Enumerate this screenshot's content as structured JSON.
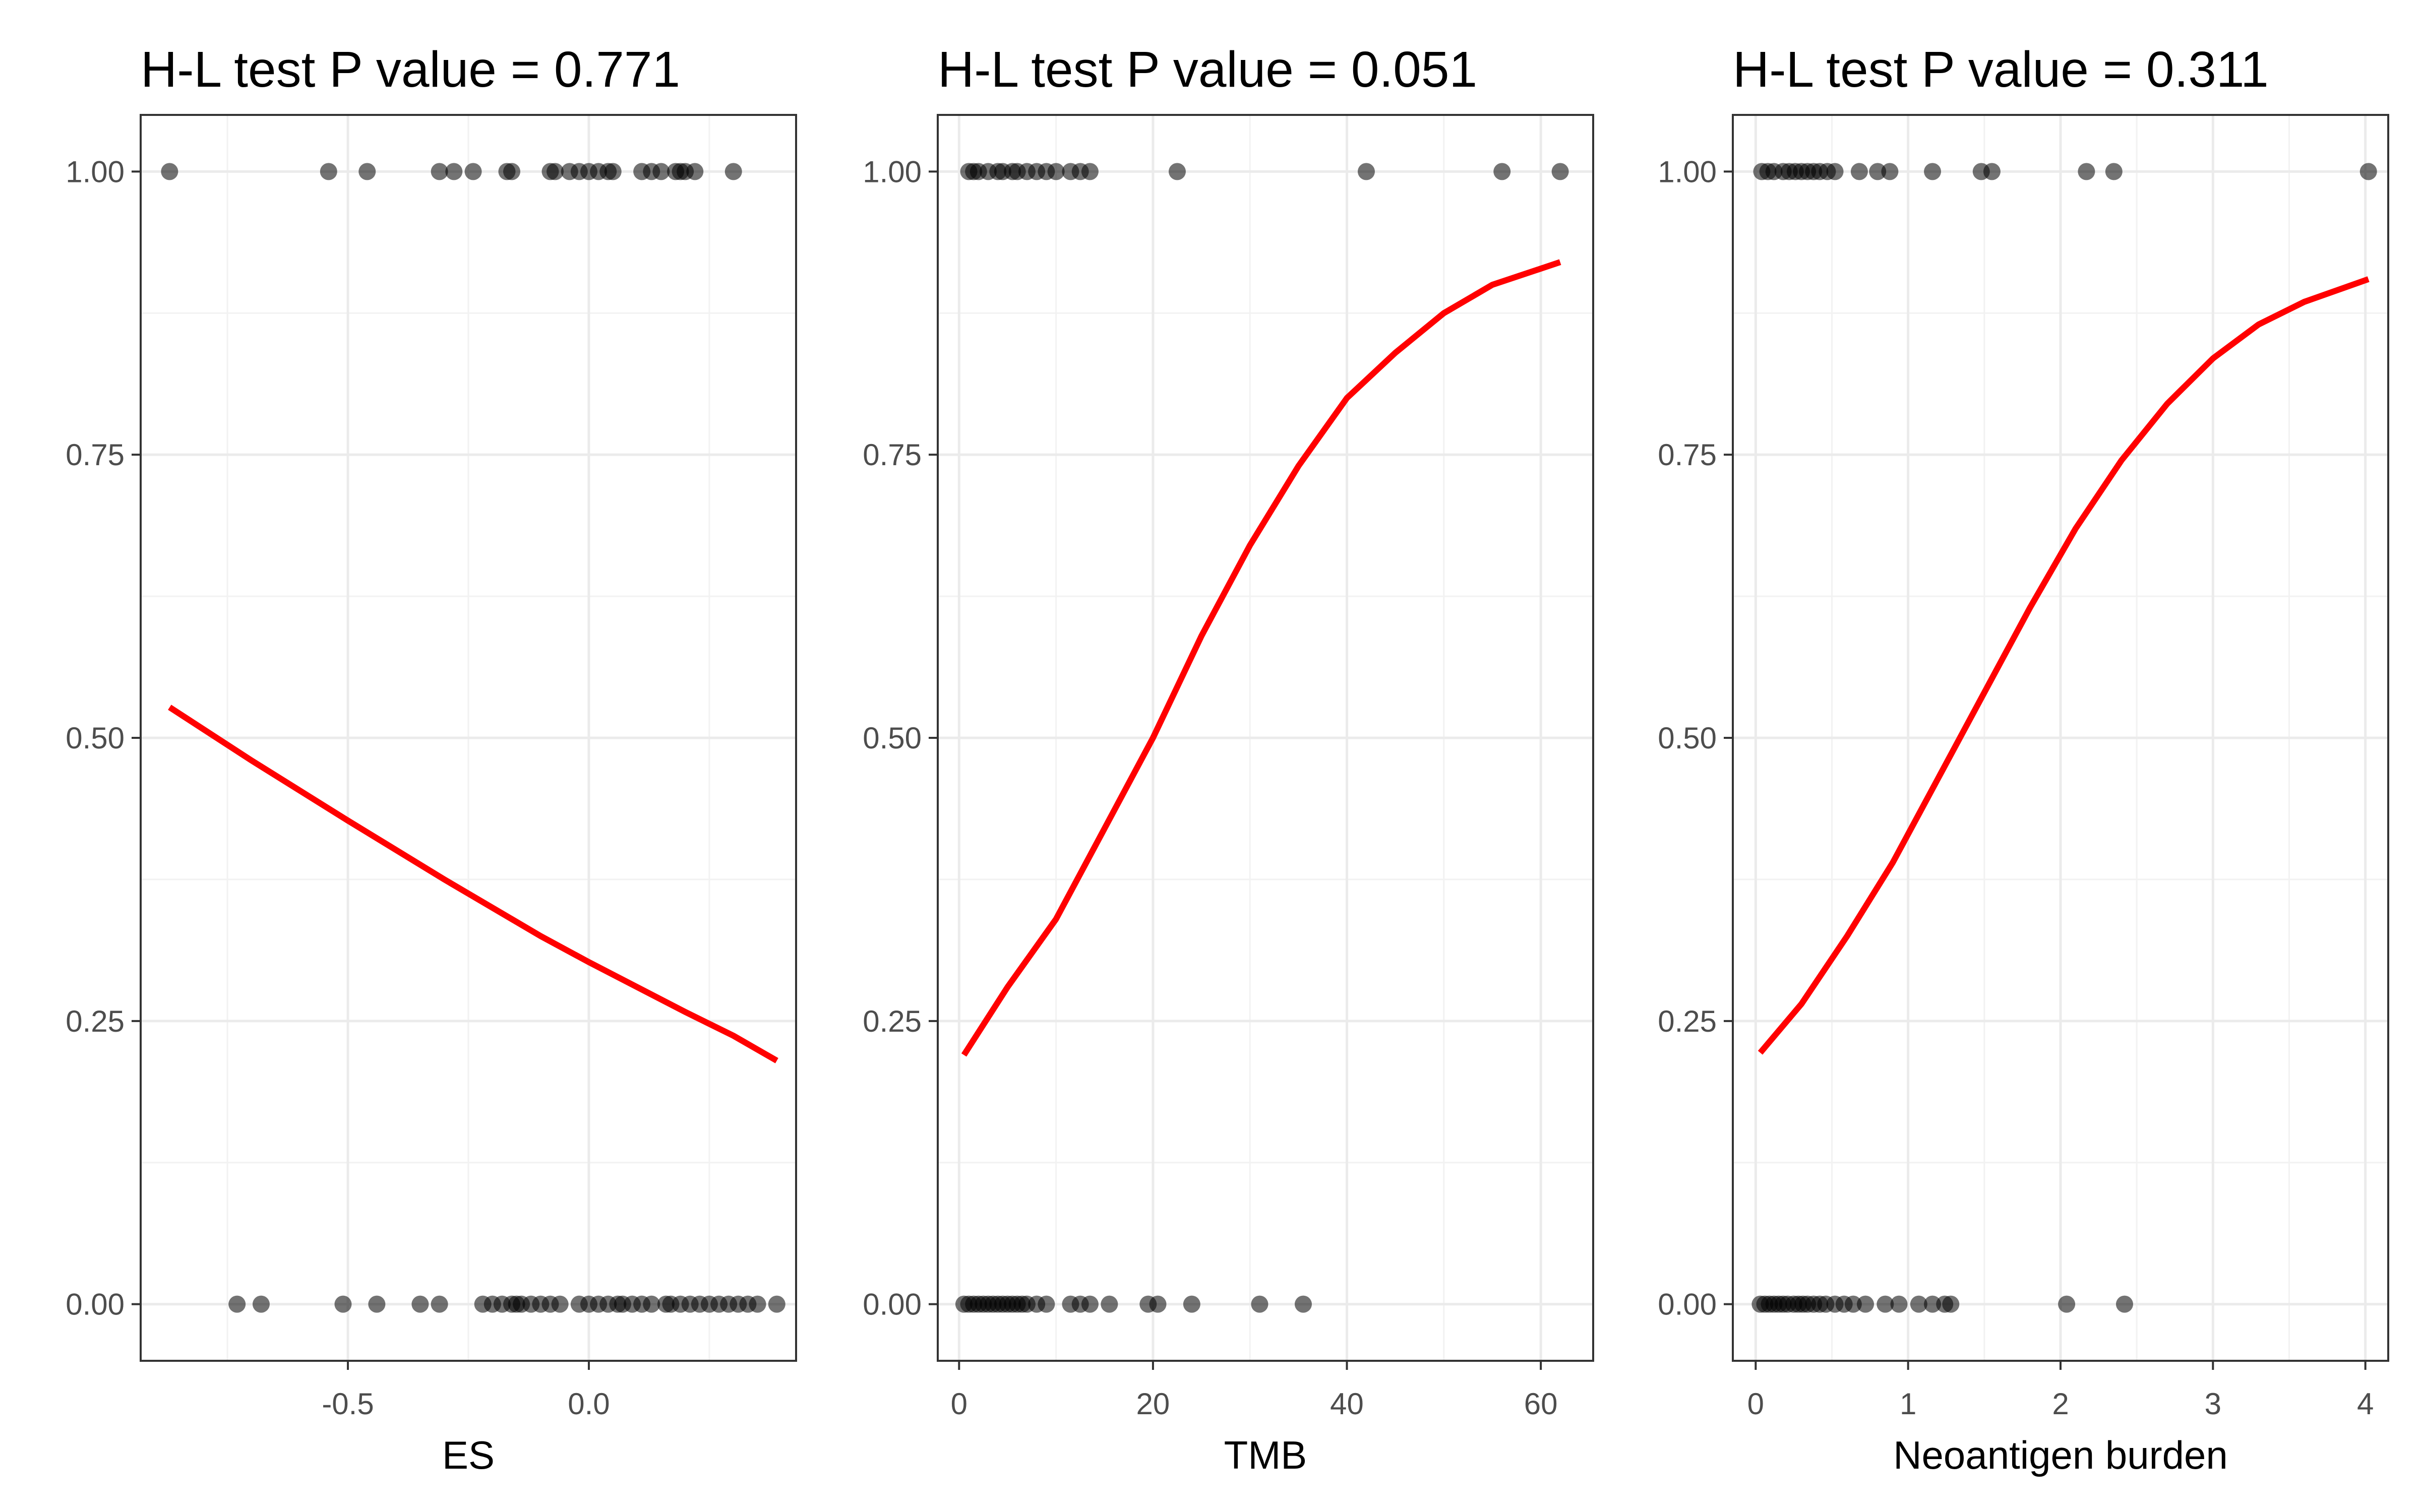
{
  "chart_data": [
    {
      "type": "scatter",
      "title": "H-L test P value = 0.771",
      "xlabel": "ES",
      "ylabel": "",
      "xlim": [
        -0.93,
        0.43
      ],
      "ylim": [
        -0.05,
        1.05
      ],
      "xticks": [
        -0.5,
        0.0
      ],
      "xtick_labels": [
        "-0.5",
        "0.0"
      ],
      "yticks": [
        0,
        0.25,
        0.5,
        0.75,
        1
      ],
      "ytick_labels": [
        "0.00",
        "0.25",
        "0.50",
        "0.75",
        "1.00"
      ],
      "grid": true,
      "point_color": "#000000",
      "line_color": "#ff0000",
      "series": [
        {
          "kind": "points",
          "points": [
            [
              -0.87,
              1
            ],
            [
              -0.54,
              1
            ],
            [
              -0.46,
              1
            ],
            [
              -0.31,
              1
            ],
            [
              -0.28,
              1
            ],
            [
              -0.24,
              1
            ],
            [
              -0.17,
              1
            ],
            [
              -0.16,
              1
            ],
            [
              -0.08,
              1
            ],
            [
              -0.07,
              1
            ],
            [
              -0.04,
              1
            ],
            [
              -0.02,
              1
            ],
            [
              0.0,
              1
            ],
            [
              0.02,
              1
            ],
            [
              0.04,
              1
            ],
            [
              0.05,
              1
            ],
            [
              0.11,
              1
            ],
            [
              0.13,
              1
            ],
            [
              0.15,
              1
            ],
            [
              0.18,
              1
            ],
            [
              0.19,
              1
            ],
            [
              0.2,
              1
            ],
            [
              0.22,
              1
            ],
            [
              0.3,
              1
            ],
            [
              -0.73,
              0
            ],
            [
              -0.68,
              0
            ],
            [
              -0.51,
              0
            ],
            [
              -0.44,
              0
            ],
            [
              -0.35,
              0
            ],
            [
              -0.31,
              0
            ],
            [
              -0.22,
              0
            ],
            [
              -0.2,
              0
            ],
            [
              -0.18,
              0
            ],
            [
              -0.16,
              0
            ],
            [
              -0.15,
              0
            ],
            [
              -0.14,
              0
            ],
            [
              -0.12,
              0
            ],
            [
              -0.1,
              0
            ],
            [
              -0.08,
              0
            ],
            [
              -0.06,
              0
            ],
            [
              -0.02,
              0
            ],
            [
              0.0,
              0
            ],
            [
              0.02,
              0
            ],
            [
              0.04,
              0
            ],
            [
              0.06,
              0
            ],
            [
              0.07,
              0
            ],
            [
              0.09,
              0
            ],
            [
              0.11,
              0
            ],
            [
              0.13,
              0
            ],
            [
              0.16,
              0
            ],
            [
              0.17,
              0
            ],
            [
              0.19,
              0
            ],
            [
              0.21,
              0
            ],
            [
              0.23,
              0
            ],
            [
              0.25,
              0
            ],
            [
              0.27,
              0
            ],
            [
              0.29,
              0
            ],
            [
              0.31,
              0
            ],
            [
              0.33,
              0
            ],
            [
              0.35,
              0
            ],
            [
              0.39,
              0
            ]
          ]
        },
        {
          "kind": "line",
          "points": [
            [
              -0.87,
              0.527
            ],
            [
              -0.7,
              0.48
            ],
            [
              -0.5,
              0.427
            ],
            [
              -0.3,
              0.375
            ],
            [
              -0.1,
              0.325
            ],
            [
              0.0,
              0.302
            ],
            [
              0.1,
              0.28
            ],
            [
              0.2,
              0.258
            ],
            [
              0.3,
              0.237
            ],
            [
              0.39,
              0.215
            ]
          ]
        }
      ]
    },
    {
      "type": "scatter",
      "title": "H-L test P value = 0.051",
      "xlabel": "TMB",
      "ylabel": "",
      "xlim": [
        -2.2,
        65.4
      ],
      "ylim": [
        -0.05,
        1.05
      ],
      "xticks": [
        0,
        20,
        40,
        60
      ],
      "xtick_labels": [
        "0",
        "20",
        "40",
        "60"
      ],
      "yticks": [
        0,
        0.25,
        0.5,
        0.75,
        1
      ],
      "ytick_labels": [
        "0.00",
        "0.25",
        "0.50",
        "0.75",
        "1.00"
      ],
      "grid": true,
      "point_color": "#000000",
      "line_color": "#ff0000",
      "series": [
        {
          "kind": "points",
          "points": [
            [
              1,
              1
            ],
            [
              1.5,
              1
            ],
            [
              2,
              1
            ],
            [
              3,
              1
            ],
            [
              4,
              1
            ],
            [
              4.5,
              1
            ],
            [
              5.5,
              1
            ],
            [
              6,
              1
            ],
            [
              7,
              1
            ],
            [
              8,
              1
            ],
            [
              9,
              1
            ],
            [
              10,
              1
            ],
            [
              11.5,
              1
            ],
            [
              12.5,
              1
            ],
            [
              13.5,
              1
            ],
            [
              22.5,
              1
            ],
            [
              42,
              1
            ],
            [
              56,
              1
            ],
            [
              62,
              1
            ],
            [
              0.5,
              0
            ],
            [
              1,
              0
            ],
            [
              1.5,
              0
            ],
            [
              2,
              0
            ],
            [
              2.5,
              0
            ],
            [
              3,
              0
            ],
            [
              3.5,
              0
            ],
            [
              4,
              0
            ],
            [
              4.5,
              0
            ],
            [
              5,
              0
            ],
            [
              5.5,
              0
            ],
            [
              6,
              0
            ],
            [
              6.5,
              0
            ],
            [
              7,
              0
            ],
            [
              8,
              0
            ],
            [
              9,
              0
            ],
            [
              11.5,
              0
            ],
            [
              12.5,
              0
            ],
            [
              13.5,
              0
            ],
            [
              15.5,
              0
            ],
            [
              19.5,
              0
            ],
            [
              20.5,
              0
            ],
            [
              24,
              0
            ],
            [
              31,
              0
            ],
            [
              35.5,
              0
            ]
          ]
        },
        {
          "kind": "line",
          "points": [
            [
              0.5,
              0.22
            ],
            [
              5,
              0.28
            ],
            [
              10,
              0.34
            ],
            [
              15,
              0.42
            ],
            [
              20,
              0.5
            ],
            [
              25,
              0.59
            ],
            [
              30,
              0.67
            ],
            [
              35,
              0.74
            ],
            [
              40,
              0.8
            ],
            [
              45,
              0.84
            ],
            [
              50,
              0.875
            ],
            [
              55,
              0.9
            ],
            [
              62,
              0.92
            ]
          ]
        }
      ]
    },
    {
      "type": "scatter",
      "title": "H-L test P value = 0.311",
      "xlabel": "Neoantigen burden",
      "ylabel": "",
      "xlim": [
        -0.15,
        4.15
      ],
      "ylim": [
        -0.05,
        1.05
      ],
      "xticks": [
        0,
        1,
        2,
        3,
        4
      ],
      "xtick_labels": [
        "0",
        "1",
        "2",
        "3",
        "4"
      ],
      "yticks": [
        0,
        0.25,
        0.5,
        0.75,
        1
      ],
      "ytick_labels": [
        "0.00",
        "0.25",
        "0.50",
        "0.75",
        "1.00"
      ],
      "grid": true,
      "point_color": "#000000",
      "line_color": "#ff0000",
      "series": [
        {
          "kind": "points",
          "points": [
            [
              0.04,
              1
            ],
            [
              0.08,
              1
            ],
            [
              0.12,
              1
            ],
            [
              0.18,
              1
            ],
            [
              0.22,
              1
            ],
            [
              0.26,
              1
            ],
            [
              0.3,
              1
            ],
            [
              0.34,
              1
            ],
            [
              0.38,
              1
            ],
            [
              0.42,
              1
            ],
            [
              0.47,
              1
            ],
            [
              0.52,
              1
            ],
            [
              0.68,
              1
            ],
            [
              0.8,
              1
            ],
            [
              0.88,
              1
            ],
            [
              1.16,
              1
            ],
            [
              1.48,
              1
            ],
            [
              1.55,
              1
            ],
            [
              2.17,
              1
            ],
            [
              2.35,
              1
            ],
            [
              4.02,
              1
            ],
            [
              0.03,
              0
            ],
            [
              0.06,
              0
            ],
            [
              0.09,
              0
            ],
            [
              0.12,
              0
            ],
            [
              0.15,
              0
            ],
            [
              0.18,
              0
            ],
            [
              0.21,
              0
            ],
            [
              0.25,
              0
            ],
            [
              0.28,
              0
            ],
            [
              0.31,
              0
            ],
            [
              0.34,
              0
            ],
            [
              0.38,
              0
            ],
            [
              0.42,
              0
            ],
            [
              0.46,
              0
            ],
            [
              0.52,
              0
            ],
            [
              0.58,
              0
            ],
            [
              0.64,
              0
            ],
            [
              0.72,
              0
            ],
            [
              0.85,
              0
            ],
            [
              0.94,
              0
            ],
            [
              1.07,
              0
            ],
            [
              1.16,
              0
            ],
            [
              1.24,
              0
            ],
            [
              1.28,
              0
            ],
            [
              2.04,
              0
            ],
            [
              2.42,
              0
            ]
          ]
        },
        {
          "kind": "line",
          "points": [
            [
              0.03,
              0.222
            ],
            [
              0.3,
              0.265
            ],
            [
              0.6,
              0.325
            ],
            [
              0.9,
              0.39
            ],
            [
              1.2,
              0.465
            ],
            [
              1.5,
              0.54
            ],
            [
              1.8,
              0.615
            ],
            [
              2.1,
              0.685
            ],
            [
              2.4,
              0.745
            ],
            [
              2.7,
              0.795
            ],
            [
              3.0,
              0.835
            ],
            [
              3.3,
              0.865
            ],
            [
              3.6,
              0.885
            ],
            [
              4.02,
              0.905
            ]
          ]
        }
      ]
    }
  ]
}
